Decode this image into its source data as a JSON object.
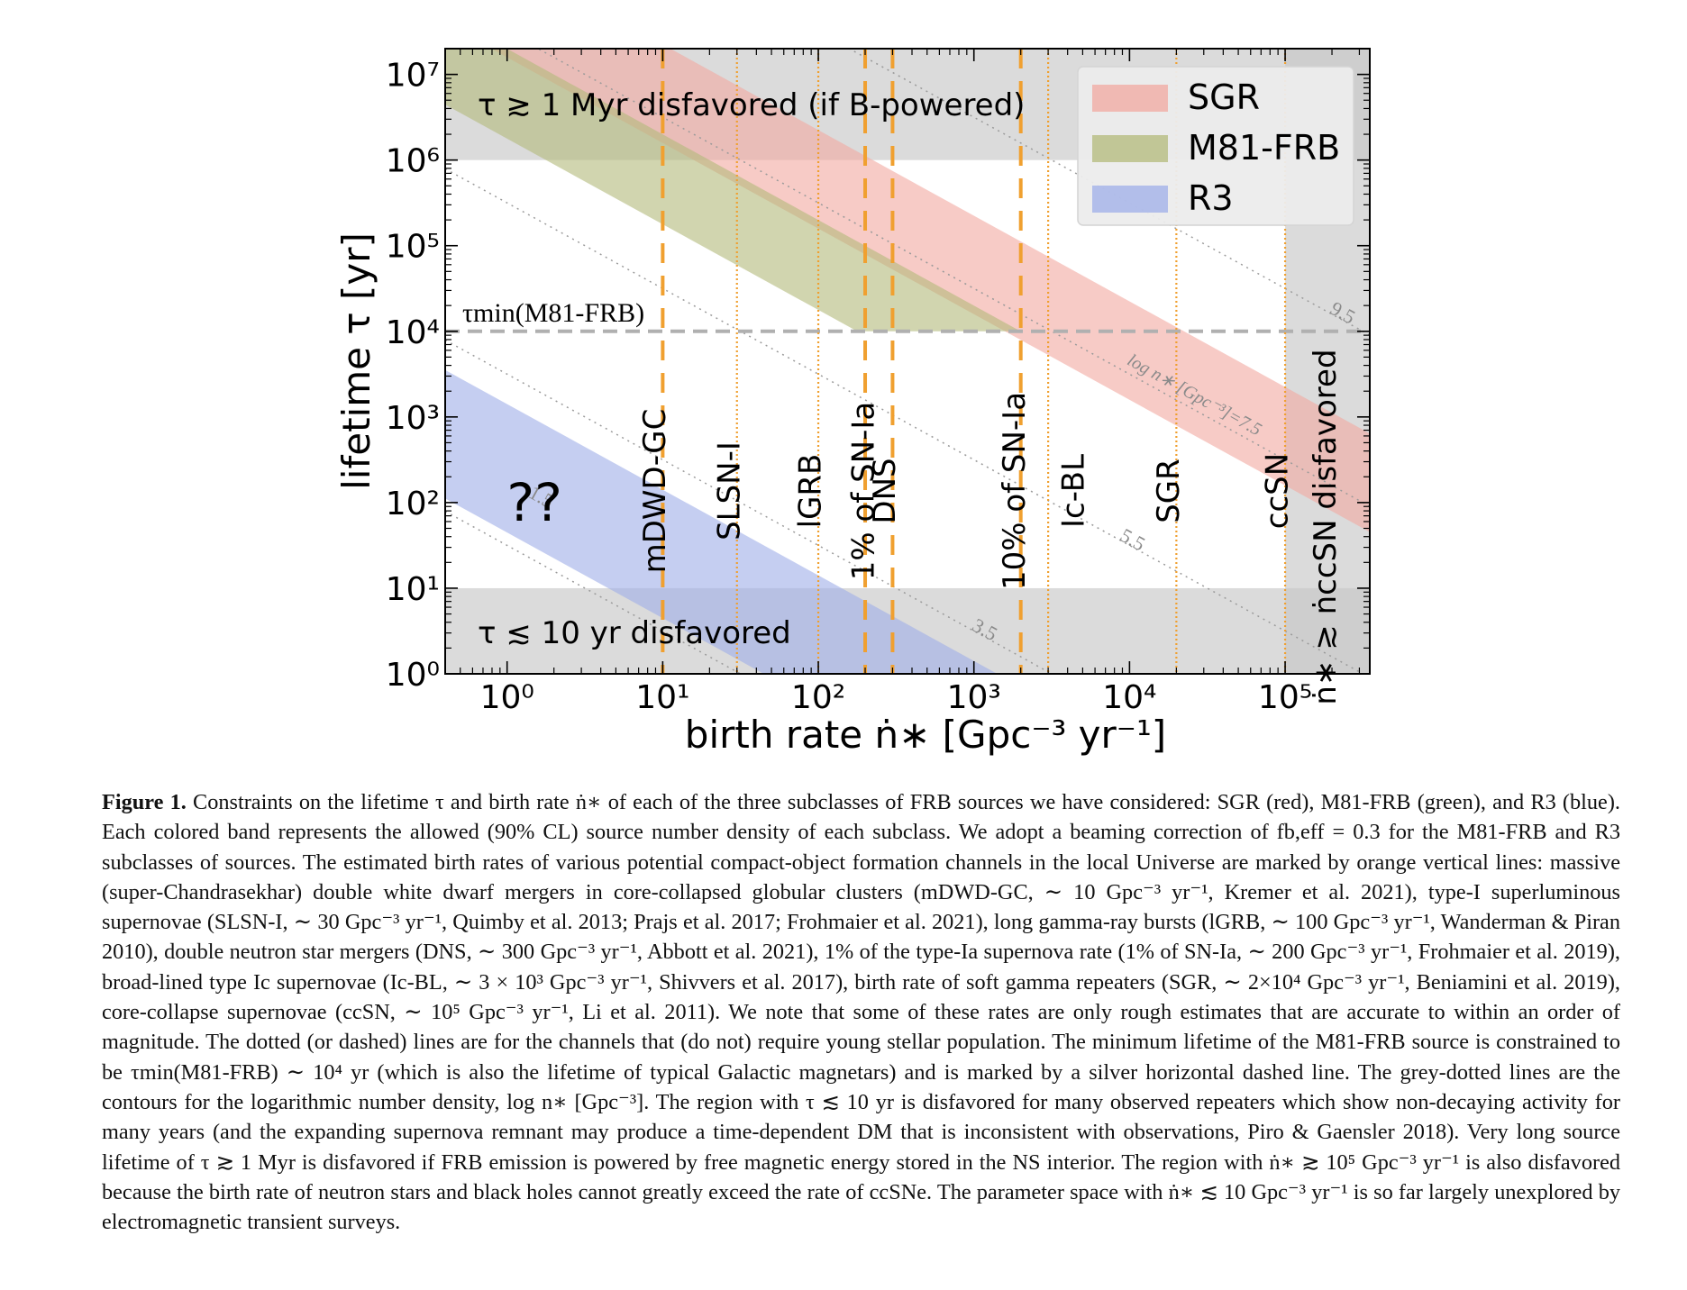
{
  "figure_label": "Figure 1.",
  "caption_text": "Constraints on the lifetime τ and birth rate ṅ∗ of each of the three subclasses of FRB sources we have considered: SGR (red), M81-FRB (green), and R3 (blue). Each colored band represents the allowed (90% CL) source number density of each subclass. We adopt a beaming correction of fb,eff = 0.3 for the M81-FRB and R3 subclasses of sources. The estimated birth rates of various potential compact-object formation channels in the local Universe are marked by orange vertical lines: massive (super-Chandrasekhar) double white dwarf mergers in core-collapsed globular clusters (mDWD-GC, ∼ 10 Gpc⁻³ yr⁻¹, Kremer et al. 2021), type-I superluminous supernovae (SLSN-I, ∼ 30 Gpc⁻³ yr⁻¹, Quimby et al. 2013; Prajs et al. 2017; Frohmaier et al. 2021), long gamma-ray bursts (lGRB, ∼ 100 Gpc⁻³ yr⁻¹, Wanderman & Piran 2010), double neutron star mergers (DNS, ∼ 300 Gpc⁻³ yr⁻¹, Abbott et al. 2021), 1% of the type-Ia supernova rate (1% of SN-Ia, ∼ 200 Gpc⁻³ yr⁻¹, Frohmaier et al. 2019), broad-lined type Ic supernovae (Ic-BL, ∼ 3 × 10³ Gpc⁻³ yr⁻¹, Shivvers et al. 2017), birth rate of soft gamma repeaters (SGR, ∼ 2×10⁴ Gpc⁻³ yr⁻¹, Beniamini et al. 2019), core-collapse supernovae (ccSN, ∼ 10⁵ Gpc⁻³ yr⁻¹, Li et al. 2011). We note that some of these rates are only rough estimates that are accurate to within an order of magnitude. The dotted (or dashed) lines are for the channels that (do not) require young stellar population. The minimum lifetime of the M81-FRB source is constrained to be τmin(M81-FRB) ∼ 10⁴ yr (which is also the lifetime of typical Galactic magnetars) and is marked by a silver horizontal dashed line. The grey-dotted lines are the contours for the logarithmic number density, log n∗ [Gpc⁻³]. The region with τ ≲ 10 yr is disfavored for many observed repeaters which show non-decaying activity for many years (and the expanding supernova remnant may produce a time-dependent DM that is inconsistent with observations, Piro & Gaensler 2018). Very long source lifetime of τ ≳ 1 Myr is disfavored if FRB emission is powered by free magnetic energy stored in the NS interior. The region with ṅ∗ ≳ 10⁵ Gpc⁻³ yr⁻¹ is also disfavored because the birth rate of neutron stars and black holes cannot greatly exceed the rate of ccSNe. The parameter space with ṅ∗ ≲ 10 Gpc⁻³ yr⁻¹ is so far largely unexplored by electromagnetic transient surveys.",
  "chart_data": {
    "type": "area",
    "xlabel": "birth rate ṅ∗ [Gpc⁻³ yr⁻¹]",
    "ylabel": "lifetime τ [yr]",
    "xscale": "log",
    "yscale": "log",
    "xlim": [
      0.4,
      350000
    ],
    "ylim": [
      1,
      20000000
    ],
    "x_ticks": [
      1,
      10,
      100,
      1000,
      10000,
      100000
    ],
    "x_tick_labels": [
      "10⁰",
      "10¹",
      "10²",
      "10³",
      "10⁴",
      "10⁵"
    ],
    "y_ticks": [
      1,
      10,
      100,
      1000,
      10000,
      100000,
      1000000,
      10000000
    ],
    "y_tick_labels": [
      "10⁰",
      "10¹",
      "10²",
      "10³",
      "10⁴",
      "10⁵",
      "10⁶",
      "10⁷"
    ],
    "bands": [
      {
        "name": "SGR",
        "color": "#f2a8a0",
        "log_n_range": [
          7.2,
          8.35
        ],
        "tau_min": 1
      },
      {
        "name": "M81-FRB",
        "color": "#b3b97a",
        "log_n_range": [
          6.25,
          7.3
        ],
        "tau_min": 10000
      },
      {
        "name": "R3",
        "color": "#9eaee8",
        "log_n_range": [
          1.65,
          3.15
        ],
        "tau_min": 1
      }
    ],
    "disfavored_regions": [
      {
        "label": "τ ≳ 1 Myr disfavored (if B-powered)",
        "tau_above": 1000000
      },
      {
        "label": "τ ≲ 10 yr disfavored",
        "tau_below": 10
      },
      {
        "label": "ṅ∗ ≳ ṅccSN disfavored",
        "rate_above": 100000
      }
    ],
    "tau_min_line": {
      "label": "τmin(M81-FRB)",
      "tau": 10000
    },
    "rate_lines": [
      {
        "label": "mDWD-GC",
        "rate": 10,
        "style": "dashed"
      },
      {
        "label": "SLSN-I",
        "rate": 30,
        "style": "dotted"
      },
      {
        "label": "lGRB",
        "rate": 100,
        "style": "dotted"
      },
      {
        "label": "1% of SN-Ia",
        "rate": 200,
        "style": "dashed"
      },
      {
        "label": "DNS",
        "rate": 300,
        "style": "dashed"
      },
      {
        "label": "10% of SN-Ia",
        "rate": 2000,
        "style": "dashed"
      },
      {
        "label": "Ic-BL",
        "rate": 3000,
        "style": "dotted"
      },
      {
        "label": "SGR",
        "rate": 20000,
        "style": "dotted"
      },
      {
        "label": "ccSN",
        "rate": 100000,
        "style": "dotted"
      }
    ],
    "contours": [
      {
        "log_n": 1.5,
        "label": "1.5"
      },
      {
        "log_n": 3.5,
        "label": "3.5"
      },
      {
        "log_n": 5.5,
        "label": "5.5"
      },
      {
        "log_n": 7.5,
        "label": "log n∗ [Gpc⁻³]=7.5"
      },
      {
        "log_n": 9.5,
        "label": "9.5"
      }
    ],
    "annotations": [
      {
        "text": "??",
        "x": 1.5,
        "tau": 100
      }
    ],
    "legend": {
      "placement": "top-right",
      "entries": [
        "SGR",
        "M81-FRB",
        "R3"
      ]
    }
  },
  "colors": {
    "orange_line": "#f0a030",
    "grey_region": "#c8c8c8",
    "tau_min_line": "#b0b0b0"
  }
}
